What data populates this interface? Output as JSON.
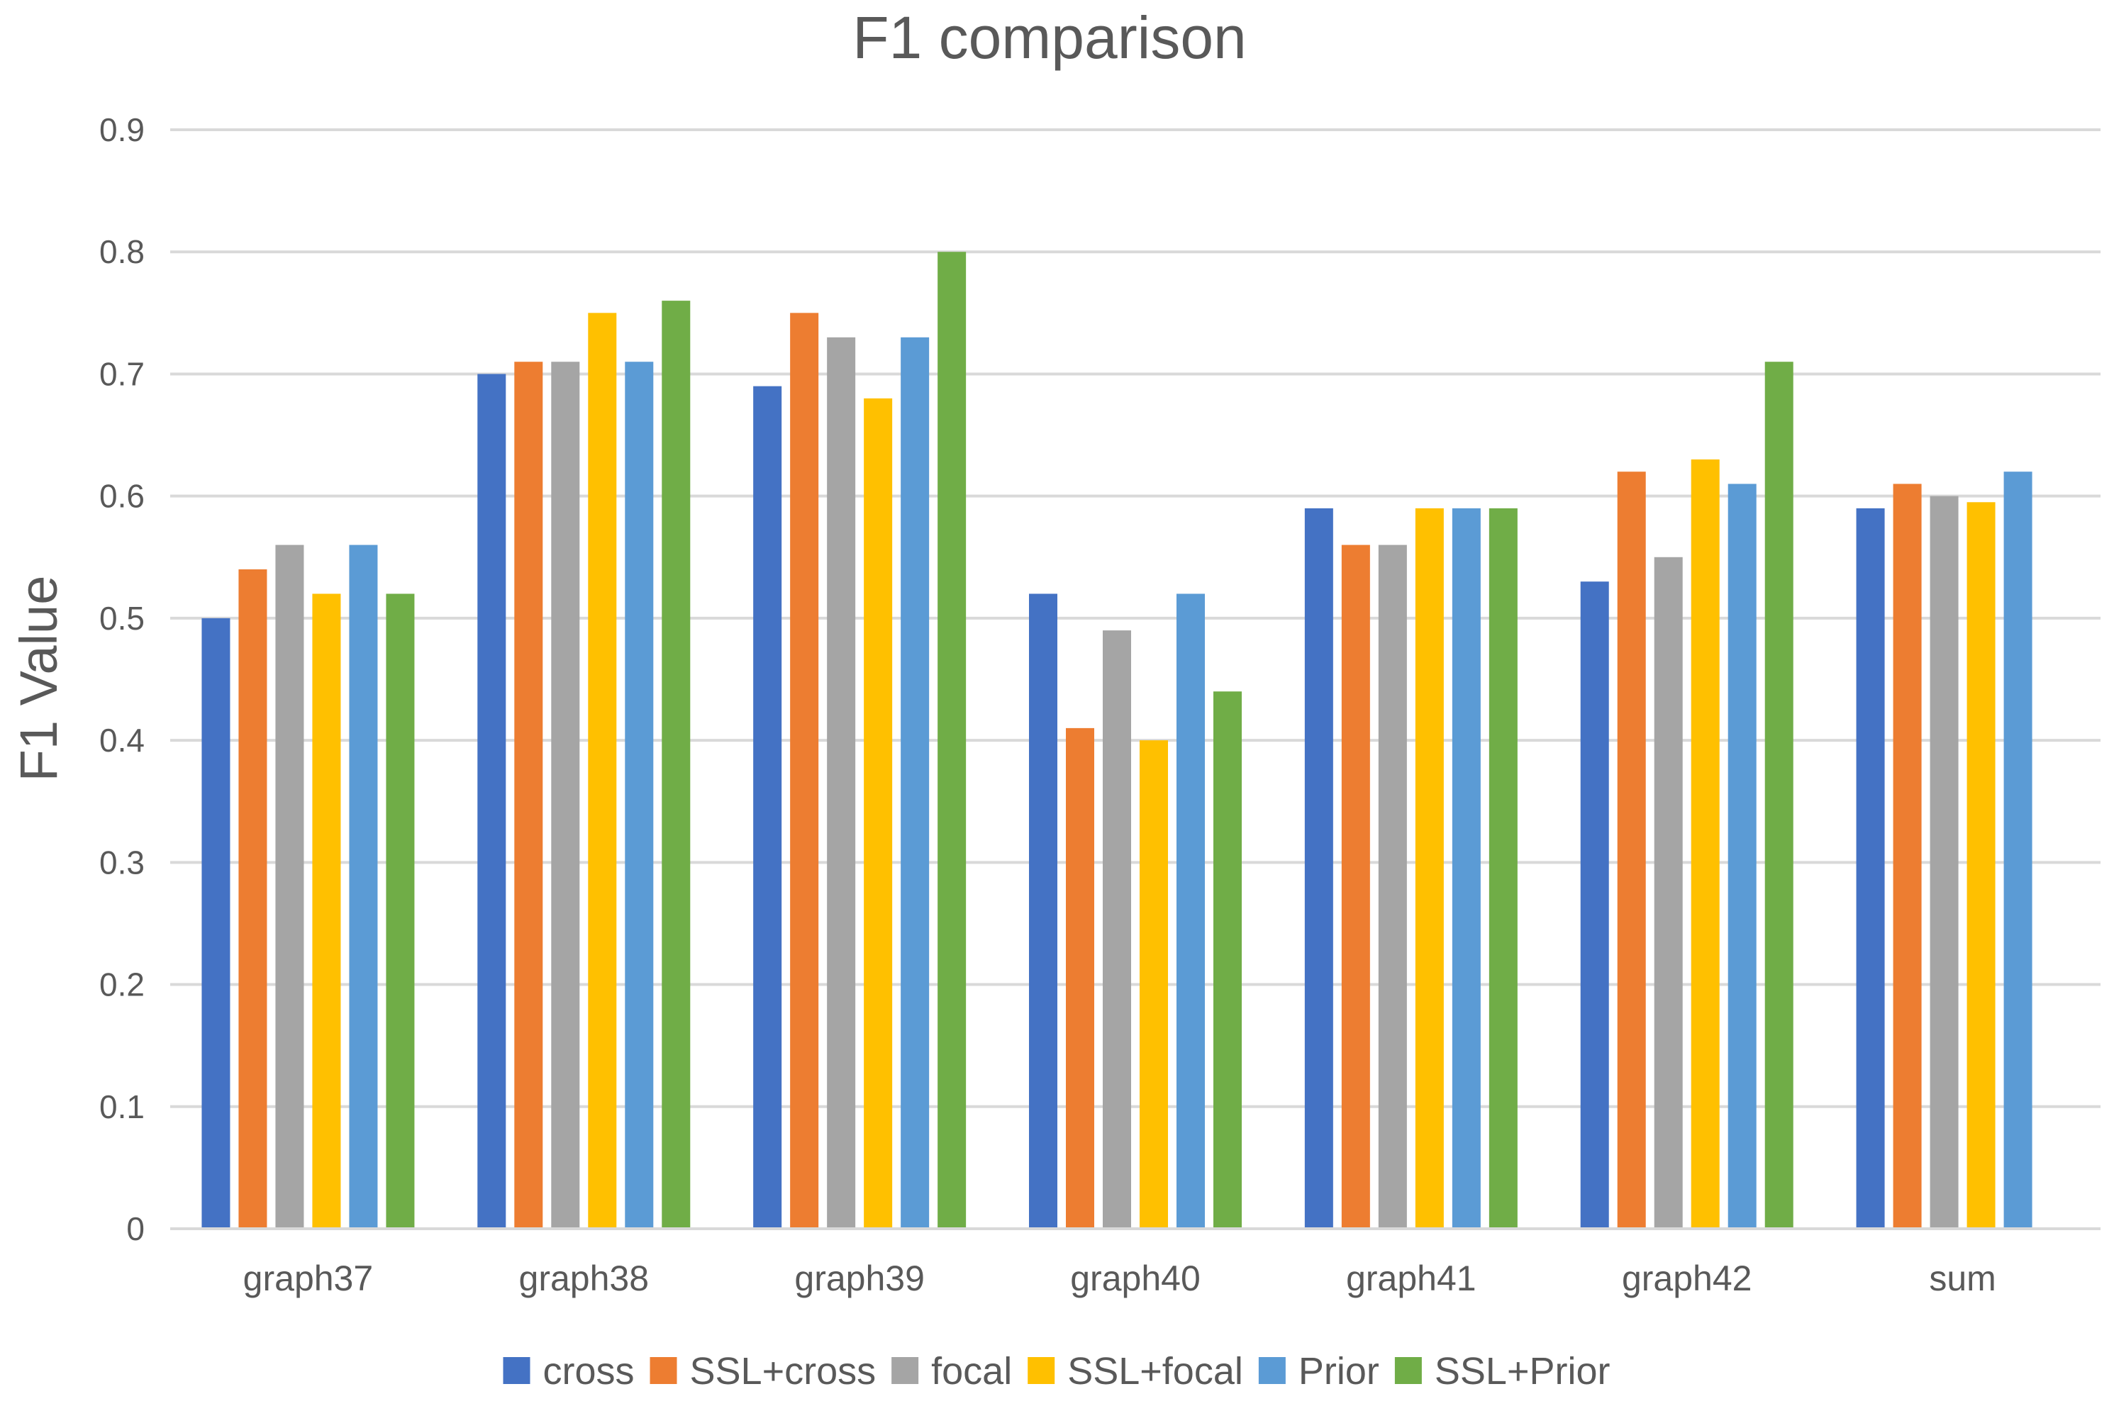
{
  "chart_data": {
    "type": "bar",
    "title": "F1 comparison",
    "xlabel": "",
    "ylabel": "F1 Value",
    "ylim": [
      0,
      0.9
    ],
    "yticks": [
      "0",
      "0.1",
      "0.2",
      "0.3",
      "0.4",
      "0.5",
      "0.6",
      "0.7",
      "0.8",
      "0.9"
    ],
    "grid": true,
    "legend_position": "bottom",
    "categories": [
      "graph37",
      "graph38",
      "graph39",
      "graph40",
      "graph41",
      "graph42",
      "sum"
    ],
    "series": [
      {
        "name": "cross",
        "color": "#4472c4",
        "values": [
          0.5,
          0.7,
          0.69,
          0.52,
          0.59,
          0.53,
          0.59
        ]
      },
      {
        "name": "SSL+cross",
        "color": "#ed7d31",
        "values": [
          0.54,
          0.71,
          0.75,
          0.41,
          0.56,
          0.62,
          0.61
        ]
      },
      {
        "name": "focal",
        "color": "#a5a5a5",
        "values": [
          0.56,
          0.71,
          0.73,
          0.49,
          0.56,
          0.55,
          0.6
        ]
      },
      {
        "name": "SSL+focal",
        "color": "#ffc000",
        "values": [
          0.52,
          0.75,
          0.68,
          0.4,
          0.59,
          0.63,
          0.595
        ]
      },
      {
        "name": "Prior",
        "color": "#5b9bd5",
        "values": [
          0.56,
          0.71,
          0.73,
          0.52,
          0.59,
          0.61,
          0.62
        ]
      },
      {
        "name": "SSL+Prior",
        "color": "#70ad47",
        "values": [
          0.52,
          0.76,
          0.8,
          0.44,
          0.59,
          0.71,
          null
        ]
      }
    ]
  }
}
